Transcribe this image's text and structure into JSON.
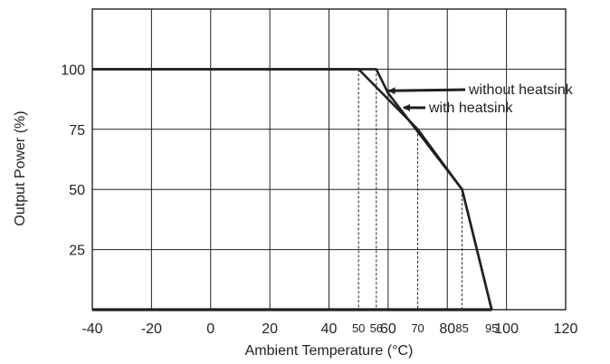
{
  "chart_data": {
    "type": "line",
    "title": "",
    "xlabel": "Ambient Temperature (°C)",
    "ylabel": "Output Power (%)",
    "xlim": [
      -40,
      120
    ],
    "ylim": [
      0,
      125
    ],
    "grid": true,
    "x_ticks": [
      -40,
      -20,
      0,
      20,
      40,
      60,
      80,
      100,
      120
    ],
    "x_minor_ticks": [
      50,
      56,
      70,
      85,
      95
    ],
    "y_ticks": [
      25,
      50,
      75,
      100
    ],
    "series": [
      {
        "x": [
          -40,
          50,
          70,
          85,
          95,
          95
        ],
        "y": [
          100,
          100,
          75,
          50,
          0,
          0
        ]
      },
      {
        "x": [
          -40,
          56,
          60,
          85,
          95
        ],
        "y": [
          100,
          100,
          90,
          50,
          0
        ]
      }
    ],
    "dashed_guides": [
      50,
      56,
      70,
      85,
      95
    ],
    "annotations": [
      {
        "text": "without heatsink",
        "target_x": 59,
        "target_y": 91
      },
      {
        "text": "with heatsink",
        "target_x": 64,
        "target_y": 84
      }
    ],
    "colors": {
      "line": "#231f20",
      "grid": "#231f20"
    }
  }
}
